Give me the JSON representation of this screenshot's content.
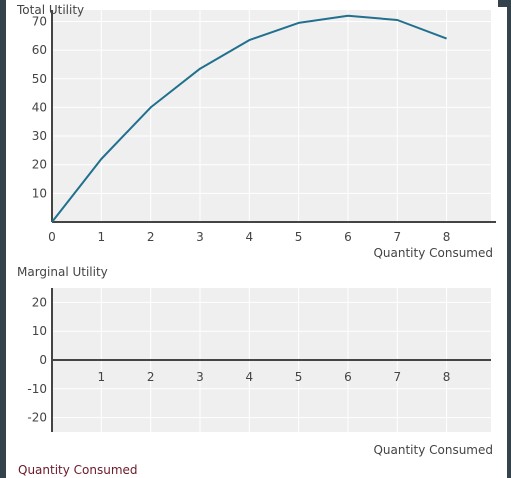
{
  "chart_data": [
    {
      "type": "line",
      "title": "Total Utility",
      "xlabel": "Quantity Consumed",
      "ylabel": "",
      "xlim": [
        0,
        8.9
      ],
      "ylim": [
        0,
        74
      ],
      "x_ticks": [
        0,
        1,
        2,
        3,
        4,
        5,
        6,
        7,
        8
      ],
      "y_ticks": [
        10,
        20,
        30,
        40,
        50,
        60,
        70
      ],
      "grid": true,
      "series": [
        {
          "color": "#21708e",
          "x": [
            0,
            1,
            2,
            3,
            4,
            5,
            6,
            7,
            8
          ],
          "y": [
            0,
            22,
            40,
            53.5,
            63.5,
            69.5,
            72,
            70.5,
            64
          ]
        }
      ]
    },
    {
      "type": "line",
      "title": "Marginal Utility",
      "xlabel": "Quantity Consumed",
      "ylabel": "",
      "xlim": [
        0,
        8.9
      ],
      "ylim": [
        -25,
        25
      ],
      "x_ticks": [
        1,
        2,
        3,
        4,
        5,
        6,
        7,
        8
      ],
      "y_ticks": [
        20,
        10,
        0,
        -10,
        -20
      ],
      "grid": true,
      "series": []
    }
  ],
  "footer": {
    "label": "Quantity Consumed"
  }
}
